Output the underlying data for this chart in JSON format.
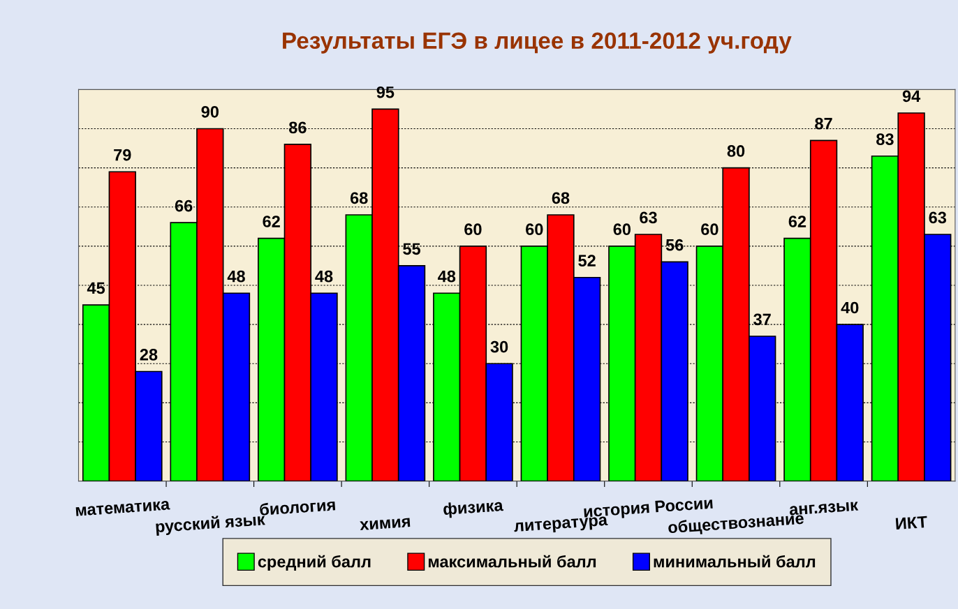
{
  "chart_data": {
    "type": "bar",
    "title": "Результаты ЕГЭ в лицее в 2011-2012 уч.году",
    "categories": [
      "математика",
      "русский язык",
      "биология",
      "химия",
      "физика",
      "литература",
      "история России",
      "обществознание",
      "анг.язык",
      "ИКТ"
    ],
    "series": [
      {
        "name": "средний балл",
        "color": "#00ff00",
        "values": [
          45,
          66,
          62,
          68,
          48,
          60,
          60,
          60,
          62,
          83
        ]
      },
      {
        "name": "максимальный балл",
        "color": "#ff0000",
        "values": [
          79,
          90,
          86,
          95,
          60,
          68,
          63,
          80,
          87,
          94
        ]
      },
      {
        "name": "минимальный балл",
        "color": "#0000ff",
        "values": [
          28,
          48,
          48,
          55,
          30,
          52,
          56,
          37,
          40,
          63
        ]
      }
    ],
    "ylim": [
      0,
      100
    ],
    "yticks": [
      {
        "value": 0,
        "label": null
      },
      {
        "value": 10,
        "label": null
      },
      {
        "value": 20,
        "label": null
      },
      {
        "value": 30,
        "label": null
      },
      {
        "value": 40,
        "label": null
      },
      {
        "value": 50,
        "label": null
      },
      {
        "value": 60,
        "label": null
      },
      {
        "value": 70,
        "label": null
      },
      {
        "value": 80,
        "label": null
      },
      {
        "value": 90,
        "label": null
      },
      {
        "value": 100,
        "label": null
      }
    ],
    "tick_labels": "x",
    "grid": "y",
    "data_labels": true,
    "legend": "bottom"
  }
}
